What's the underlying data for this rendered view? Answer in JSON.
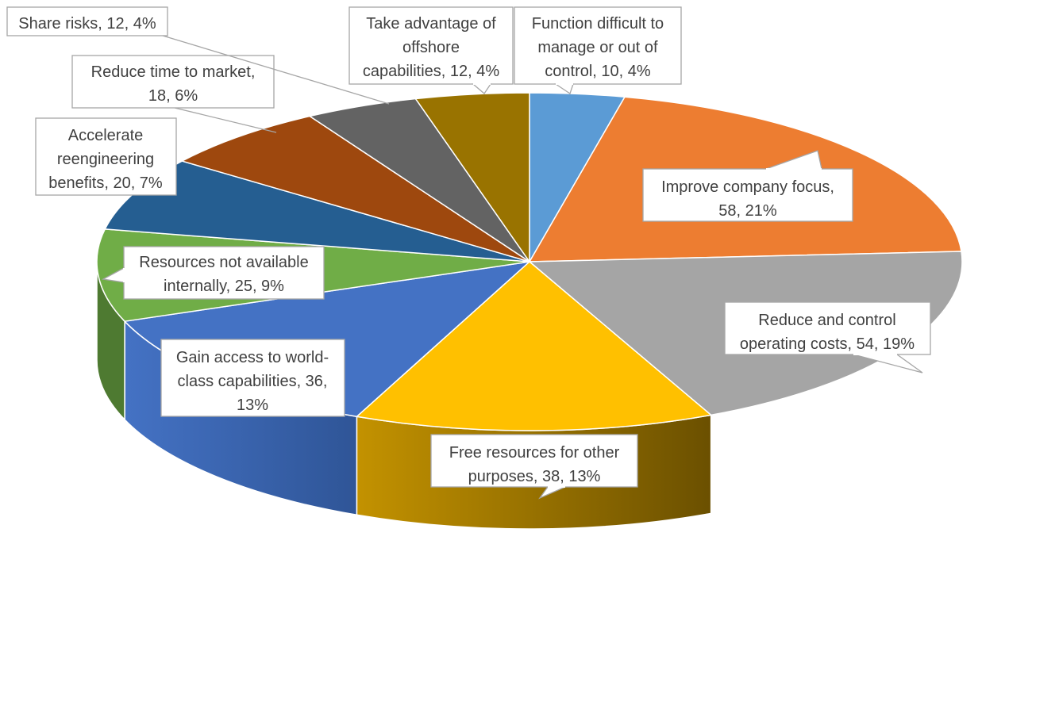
{
  "chart_data": {
    "type": "pie",
    "style": "3d-exploded-none",
    "title": "",
    "slices": [
      {
        "label": "Function difficult to manage or out of control",
        "value": 10,
        "percent": "4%",
        "color": "#5b9bd5",
        "side_color": "#4a80b0"
      },
      {
        "label": "Improve company focus",
        "value": 58,
        "percent": "21%",
        "color": "#ed7d31",
        "side_color": "#b35d22"
      },
      {
        "label": "Reduce and control operating costs",
        "value": 54,
        "percent": "19%",
        "color": "#a5a5a5",
        "side_color": "#444444"
      },
      {
        "label": "Free resources for other purposes",
        "value": 38,
        "percent": "13%",
        "color": "#ffc000",
        "side_color": "#a07800"
      },
      {
        "label": "Gain access to world-class capabilities",
        "value": 36,
        "percent": "13%",
        "color": "#4472c4",
        "side_color": "#2f5597"
      },
      {
        "label": "Resources not available internally",
        "value": 25,
        "percent": "9%",
        "color": "#70ad47",
        "side_color": "#4e7a31"
      },
      {
        "label": "Accelerate reengineering benefits",
        "value": 20,
        "percent": "7%",
        "color": "#255e91",
        "side_color": "#1a4468"
      },
      {
        "label": "Reduce time to market",
        "value": 18,
        "percent": "6%",
        "color": "#9e480e",
        "side_color": "#6f330a"
      },
      {
        "label": "Share risks",
        "value": 12,
        "percent": "4%",
        "color": "#636363",
        "side_color": "#444444"
      },
      {
        "label": "Take advantage of offshore capabilities",
        "value": 12,
        "percent": "4%",
        "color": "#997300",
        "side_color": "#6b5000"
      }
    ],
    "data_labels": [
      {
        "lines": [
          "Function difficult to",
          "manage or out of",
          "control, 10, 4%"
        ]
      },
      {
        "lines": [
          "Improve company focus,",
          "58, 21%"
        ]
      },
      {
        "lines": [
          "Reduce and control",
          "operating costs, 54, 19%"
        ]
      },
      {
        "lines": [
          "Free resources for other",
          "purposes, 38, 13%"
        ]
      },
      {
        "lines": [
          "Gain access to world-",
          "class capabilities, 36,",
          "13%"
        ]
      },
      {
        "lines": [
          "Resources not available",
          "internally, 25, 9%"
        ]
      },
      {
        "lines": [
          "Accelerate",
          "reengineering",
          "benefits, 20, 7%"
        ]
      },
      {
        "lines": [
          "Reduce time to market,",
          "18, 6%"
        ]
      },
      {
        "lines": [
          "Share risks, 12, 4%"
        ]
      },
      {
        "lines": [
          "Take advantage of",
          "offshore",
          "capabilities, 12, 4%"
        ]
      }
    ],
    "legend": "none"
  }
}
